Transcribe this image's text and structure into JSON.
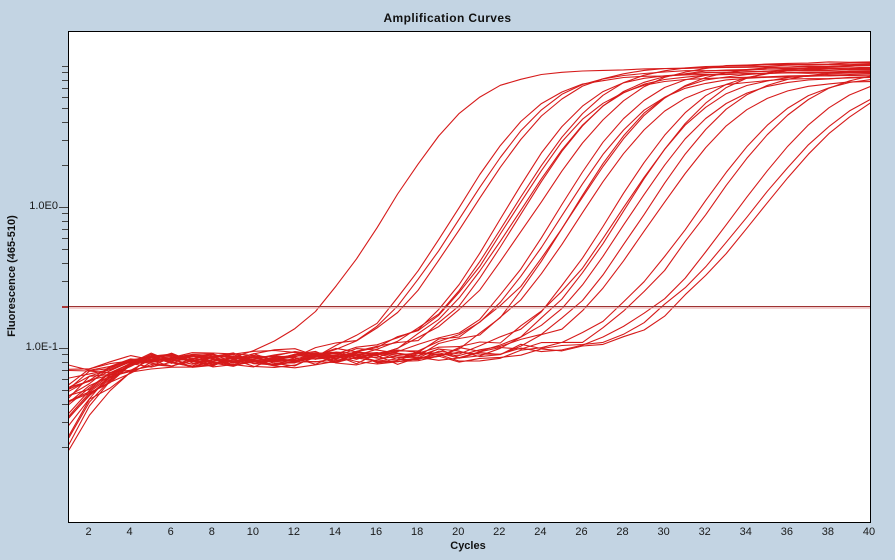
{
  "window": {
    "background_color": "#c3d4e3"
  },
  "chart_data": {
    "type": "line",
    "title": "Amplification Curves",
    "xlabel": "Cycles",
    "ylabel": "Fluorescence (465-510)",
    "x_ticks": [
      2,
      4,
      6,
      8,
      10,
      12,
      14,
      16,
      18,
      20,
      22,
      24,
      26,
      28,
      30,
      32,
      34,
      36,
      38,
      40
    ],
    "xlim": [
      1,
      40
    ],
    "y_scale": "log",
    "ylim": [
      0.0056,
      17.8
    ],
    "y_major_ticks": [
      {
        "value": 1.0,
        "label": "1.0E0"
      },
      {
        "value": 0.1,
        "label": "1.0E-1"
      }
    ],
    "y_minor_ticks": [
      10,
      9,
      8,
      7,
      6,
      5,
      4,
      3,
      2,
      0.9,
      0.8,
      0.7,
      0.6,
      0.5,
      0.4,
      0.3,
      0.2,
      0.09,
      0.08,
      0.07,
      0.06,
      0.05,
      0.04,
      0.03,
      0.02
    ],
    "grid": false,
    "legend": "none",
    "curve_color": "#d61a1a",
    "threshold_line": {
      "value": 0.2,
      "color": "#9e3333",
      "shadow_color": "#efb6b6"
    },
    "noise_seed": 11,
    "model": "sigmoid_baseline_log",
    "series": [
      {
        "ct": 13.3,
        "plateau": 9.2,
        "baseline": 0.08,
        "slope": 1.55,
        "start": 0.5
      },
      {
        "ct": 16.8,
        "plateau": 8.4,
        "baseline": 0.078,
        "slope": 1.5,
        "start": 0.65
      },
      {
        "ct": 17.05,
        "plateau": 9.0,
        "baseline": 0.082,
        "slope": 1.55,
        "start": 0.4
      },
      {
        "ct": 17.35,
        "plateau": 9.6,
        "baseline": 0.076,
        "slope": 1.6,
        "start": 0.75
      },
      {
        "ct": 19.2,
        "plateau": 8.8,
        "baseline": 0.084,
        "slope": 1.45,
        "start": 0.3
      },
      {
        "ct": 19.4,
        "plateau": 9.9,
        "baseline": 0.079,
        "slope": 1.55,
        "start": 0.85
      },
      {
        "ct": 19.55,
        "plateau": 8.1,
        "baseline": 0.086,
        "slope": 1.5,
        "start": 0.55
      },
      {
        "ct": 19.75,
        "plateau": 9.3,
        "baseline": 0.074,
        "slope": 1.6,
        "start": 0.25
      },
      {
        "ct": 20.0,
        "plateau": 8.6,
        "baseline": 0.081,
        "slope": 1.5,
        "start": 0.7
      },
      {
        "ct": 20.35,
        "plateau": 10.2,
        "baseline": 0.077,
        "slope": 1.65,
        "start": 0.45
      },
      {
        "ct": 21.7,
        "plateau": 9.1,
        "baseline": 0.083,
        "slope": 1.5,
        "start": 0.6
      },
      {
        "ct": 21.95,
        "plateau": 8.2,
        "baseline": 0.079,
        "slope": 1.55,
        "start": 0.9
      },
      {
        "ct": 22.2,
        "plateau": 9.7,
        "baseline": 0.085,
        "slope": 1.6,
        "start": 0.35
      },
      {
        "ct": 22.5,
        "plateau": 8.8,
        "baseline": 0.075,
        "slope": 1.5,
        "start": 0.55
      },
      {
        "ct": 22.85,
        "plateau": 7.9,
        "baseline": 0.082,
        "slope": 1.55,
        "start": 0.8
      },
      {
        "ct": 24.3,
        "plateau": 9.4,
        "baseline": 0.078,
        "slope": 1.55,
        "start": 0.45
      },
      {
        "ct": 24.55,
        "plateau": 8.6,
        "baseline": 0.084,
        "slope": 1.6,
        "start": 0.65
      },
      {
        "ct": 24.85,
        "plateau": 9.9,
        "baseline": 0.08,
        "slope": 1.55,
        "start": 0.3
      },
      {
        "ct": 25.2,
        "plateau": 8.1,
        "baseline": 0.076,
        "slope": 1.6,
        "start": 0.75
      },
      {
        "ct": 25.8,
        "plateau": 9.0,
        "baseline": 0.082,
        "slope": 1.6,
        "start": 0.5
      },
      {
        "ct": 26.3,
        "plateau": 7.7,
        "baseline": 0.079,
        "slope": 1.65,
        "start": 0.85
      },
      {
        "ct": 28.1,
        "plateau": 8.4,
        "baseline": 0.083,
        "slope": 1.7,
        "start": 0.4
      },
      {
        "ct": 28.55,
        "plateau": 9.2,
        "baseline": 0.077,
        "slope": 1.75,
        "start": 0.6
      },
      {
        "ct": 29.8,
        "plateau": 8.9,
        "baseline": 0.081,
        "slope": 1.8,
        "start": 0.25
      },
      {
        "ct": 30.25,
        "plateau": 8.0,
        "baseline": 0.085,
        "slope": 1.9,
        "start": 0.7
      },
      {
        "ct": 30.7,
        "plateau": 8.6,
        "baseline": 0.078,
        "slope": 1.95,
        "start": 0.55
      }
    ]
  }
}
